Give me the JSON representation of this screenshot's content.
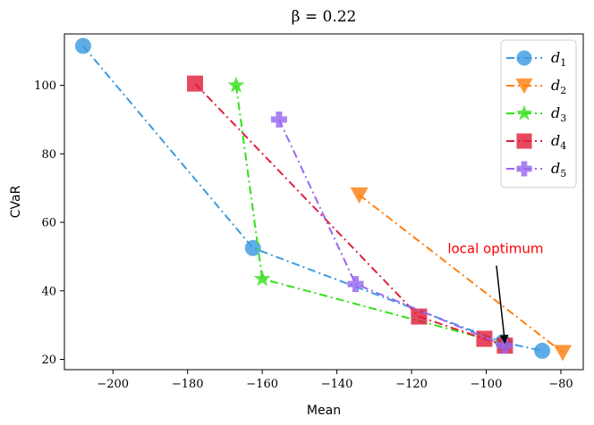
{
  "chart_data": {
    "type": "line",
    "title": "β = 0.22",
    "xlabel": "Mean",
    "ylabel": "CVaR",
    "xlim": [
      -213,
      -74
    ],
    "ylim": [
      17,
      115
    ],
    "xticks": [
      -200,
      -180,
      -160,
      -140,
      -120,
      -100,
      -80
    ],
    "yticks": [
      20,
      40,
      60,
      80,
      100
    ],
    "xtick_labels": [
      "−200",
      "−180",
      "−160",
      "−140",
      "−120",
      "−100",
      "−80"
    ],
    "ytick_labels": [
      "20",
      "40",
      "60",
      "80",
      "100"
    ],
    "legend_position": "top-right",
    "series": [
      {
        "name": "d1",
        "sub": "1",
        "marker": "circle",
        "color": "#3a9be0",
        "x": [
          -208,
          -162.5,
          -95.5,
          -85
        ],
        "y": [
          111.5,
          52.5,
          25,
          22.5
        ]
      },
      {
        "name": "d2",
        "sub": "2",
        "marker": "triangle-down",
        "color": "#ff7f0e",
        "x": [
          -134,
          -79.5
        ],
        "y": [
          68,
          22
        ]
      },
      {
        "name": "d3",
        "sub": "3",
        "marker": "star",
        "color": "#33e01a",
        "x": [
          -167,
          -160,
          -95
        ],
        "y": [
          100,
          43.5,
          24.5
        ]
      },
      {
        "name": "d4",
        "sub": "4",
        "marker": "square",
        "color": "#e0203d",
        "x": [
          -178,
          -118,
          -100.5,
          -95
        ],
        "y": [
          100.5,
          32.5,
          26,
          24
        ]
      },
      {
        "name": "d5",
        "sub": "5",
        "marker": "plus",
        "color": "#9966f0",
        "x": [
          -155.5,
          -135,
          -95
        ],
        "y": [
          90,
          42,
          24
        ]
      }
    ],
    "annotations": [
      {
        "text": "local optimum",
        "color": "#ff0000",
        "text_x": -97.5,
        "text_y": 51,
        "arrow_to_x": -95,
        "arrow_to_y": 24
      }
    ]
  }
}
